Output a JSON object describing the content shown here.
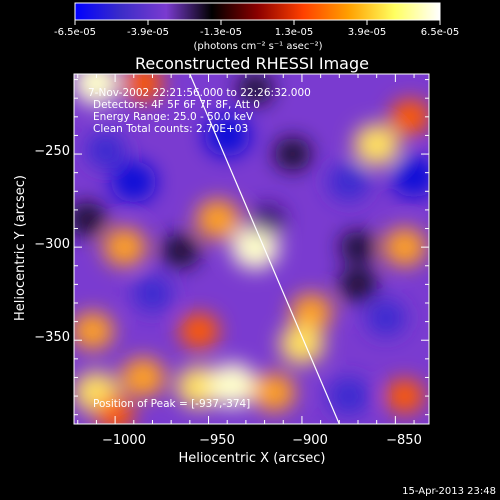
{
  "colorbar": {
    "tick_labels": [
      "-6.5e-05",
      "-3.9e-05",
      "-1.3e-05",
      "1.3e-05",
      "3.9e-05",
      "6.5e-05"
    ],
    "unit_label": "(photons cm⁻² s⁻¹ asec⁻²)",
    "colors": [
      "#0000ff",
      "#3b2cc8",
      "#7a3bd0",
      "#000000",
      "#8b0000",
      "#ff4000",
      "#ffa000",
      "#ffff60",
      "#ffffff"
    ]
  },
  "chart_data": {
    "type": "heatmap",
    "title": "Reconstructed RHESSI Image",
    "xlabel": "Heliocentric X (arcsec)",
    "ylabel": "Heliocentric Y (arcsec)",
    "xlim": [
      -1022,
      -832
    ],
    "ylim": [
      -395,
      -207
    ],
    "x_ticks": [
      -1000,
      -950,
      -900,
      -850
    ],
    "x_tick_labels": [
      "−1000",
      "−950",
      "−900",
      "−850"
    ],
    "y_ticks": [
      -250,
      -300,
      -350
    ],
    "y_tick_labels": [
      "−250",
      "−300",
      "−350"
    ],
    "value_range": [
      -6.5e-05,
      6.5e-05
    ],
    "annotations": [
      "7-Nov-2002 22:21:56.000 to 22:26:32.000",
      "Detectors: 4F 5F 6F 7F 8F, Att 0",
      "Energy Range: 25.0 - 50.0 keV",
      "Clean    Total counts: 2.70E+03"
    ],
    "peak_label": "Position of Peak = [-937,-374]",
    "peak": [
      -937,
      -374
    ],
    "limb_line": [
      [
        -960,
        -207
      ],
      [
        -880,
        -395
      ]
    ],
    "blobs": [
      {
        "x": -1010,
        "y": -212,
        "v": 0.95
      },
      {
        "x": -985,
        "y": -212,
        "v": 0.6
      },
      {
        "x": -940,
        "y": -240,
        "v": -0.9
      },
      {
        "x": -990,
        "y": -265,
        "v": -0.85
      },
      {
        "x": -1005,
        "y": -248,
        "v": -0.6
      },
      {
        "x": -995,
        "y": -300,
        "v": 0.75
      },
      {
        "x": -965,
        "y": -302,
        "v": -0.5
      },
      {
        "x": -945,
        "y": -285,
        "v": 0.8
      },
      {
        "x": -925,
        "y": -300,
        "v": 1.0
      },
      {
        "x": -918,
        "y": -285,
        "v": -0.3
      },
      {
        "x": -980,
        "y": -325,
        "v": -0.6
      },
      {
        "x": -955,
        "y": -345,
        "v": 0.6
      },
      {
        "x": -895,
        "y": -335,
        "v": 0.7
      },
      {
        "x": -900,
        "y": -352,
        "v": 0.85
      },
      {
        "x": -1012,
        "y": -345,
        "v": 0.7
      },
      {
        "x": -1010,
        "y": -378,
        "v": 0.9
      },
      {
        "x": -985,
        "y": -370,
        "v": 0.8
      },
      {
        "x": -955,
        "y": -375,
        "v": 0.9
      },
      {
        "x": -937,
        "y": -374,
        "v": 1.0
      },
      {
        "x": -915,
        "y": -378,
        "v": 0.75
      },
      {
        "x": -875,
        "y": -380,
        "v": -0.7
      },
      {
        "x": -845,
        "y": -380,
        "v": 0.55
      },
      {
        "x": -860,
        "y": -245,
        "v": 0.9
      },
      {
        "x": -842,
        "y": -230,
        "v": 0.6
      },
      {
        "x": -875,
        "y": -265,
        "v": -0.7
      },
      {
        "x": -840,
        "y": -262,
        "v": -0.9
      },
      {
        "x": -845,
        "y": -300,
        "v": 0.75
      },
      {
        "x": -870,
        "y": -320,
        "v": -0.5
      },
      {
        "x": -855,
        "y": -338,
        "v": -0.6
      },
      {
        "x": -905,
        "y": -250,
        "v": -0.45
      },
      {
        "x": -1015,
        "y": -285,
        "v": -0.5
      },
      {
        "x": -925,
        "y": -215,
        "v": -0.35
      },
      {
        "x": -1000,
        "y": -390,
        "v": 0.5
      },
      {
        "x": -870,
        "y": -300,
        "v": -0.4
      }
    ]
  },
  "footer": {
    "timestamp": "15-Apr-2013 23:48"
  }
}
